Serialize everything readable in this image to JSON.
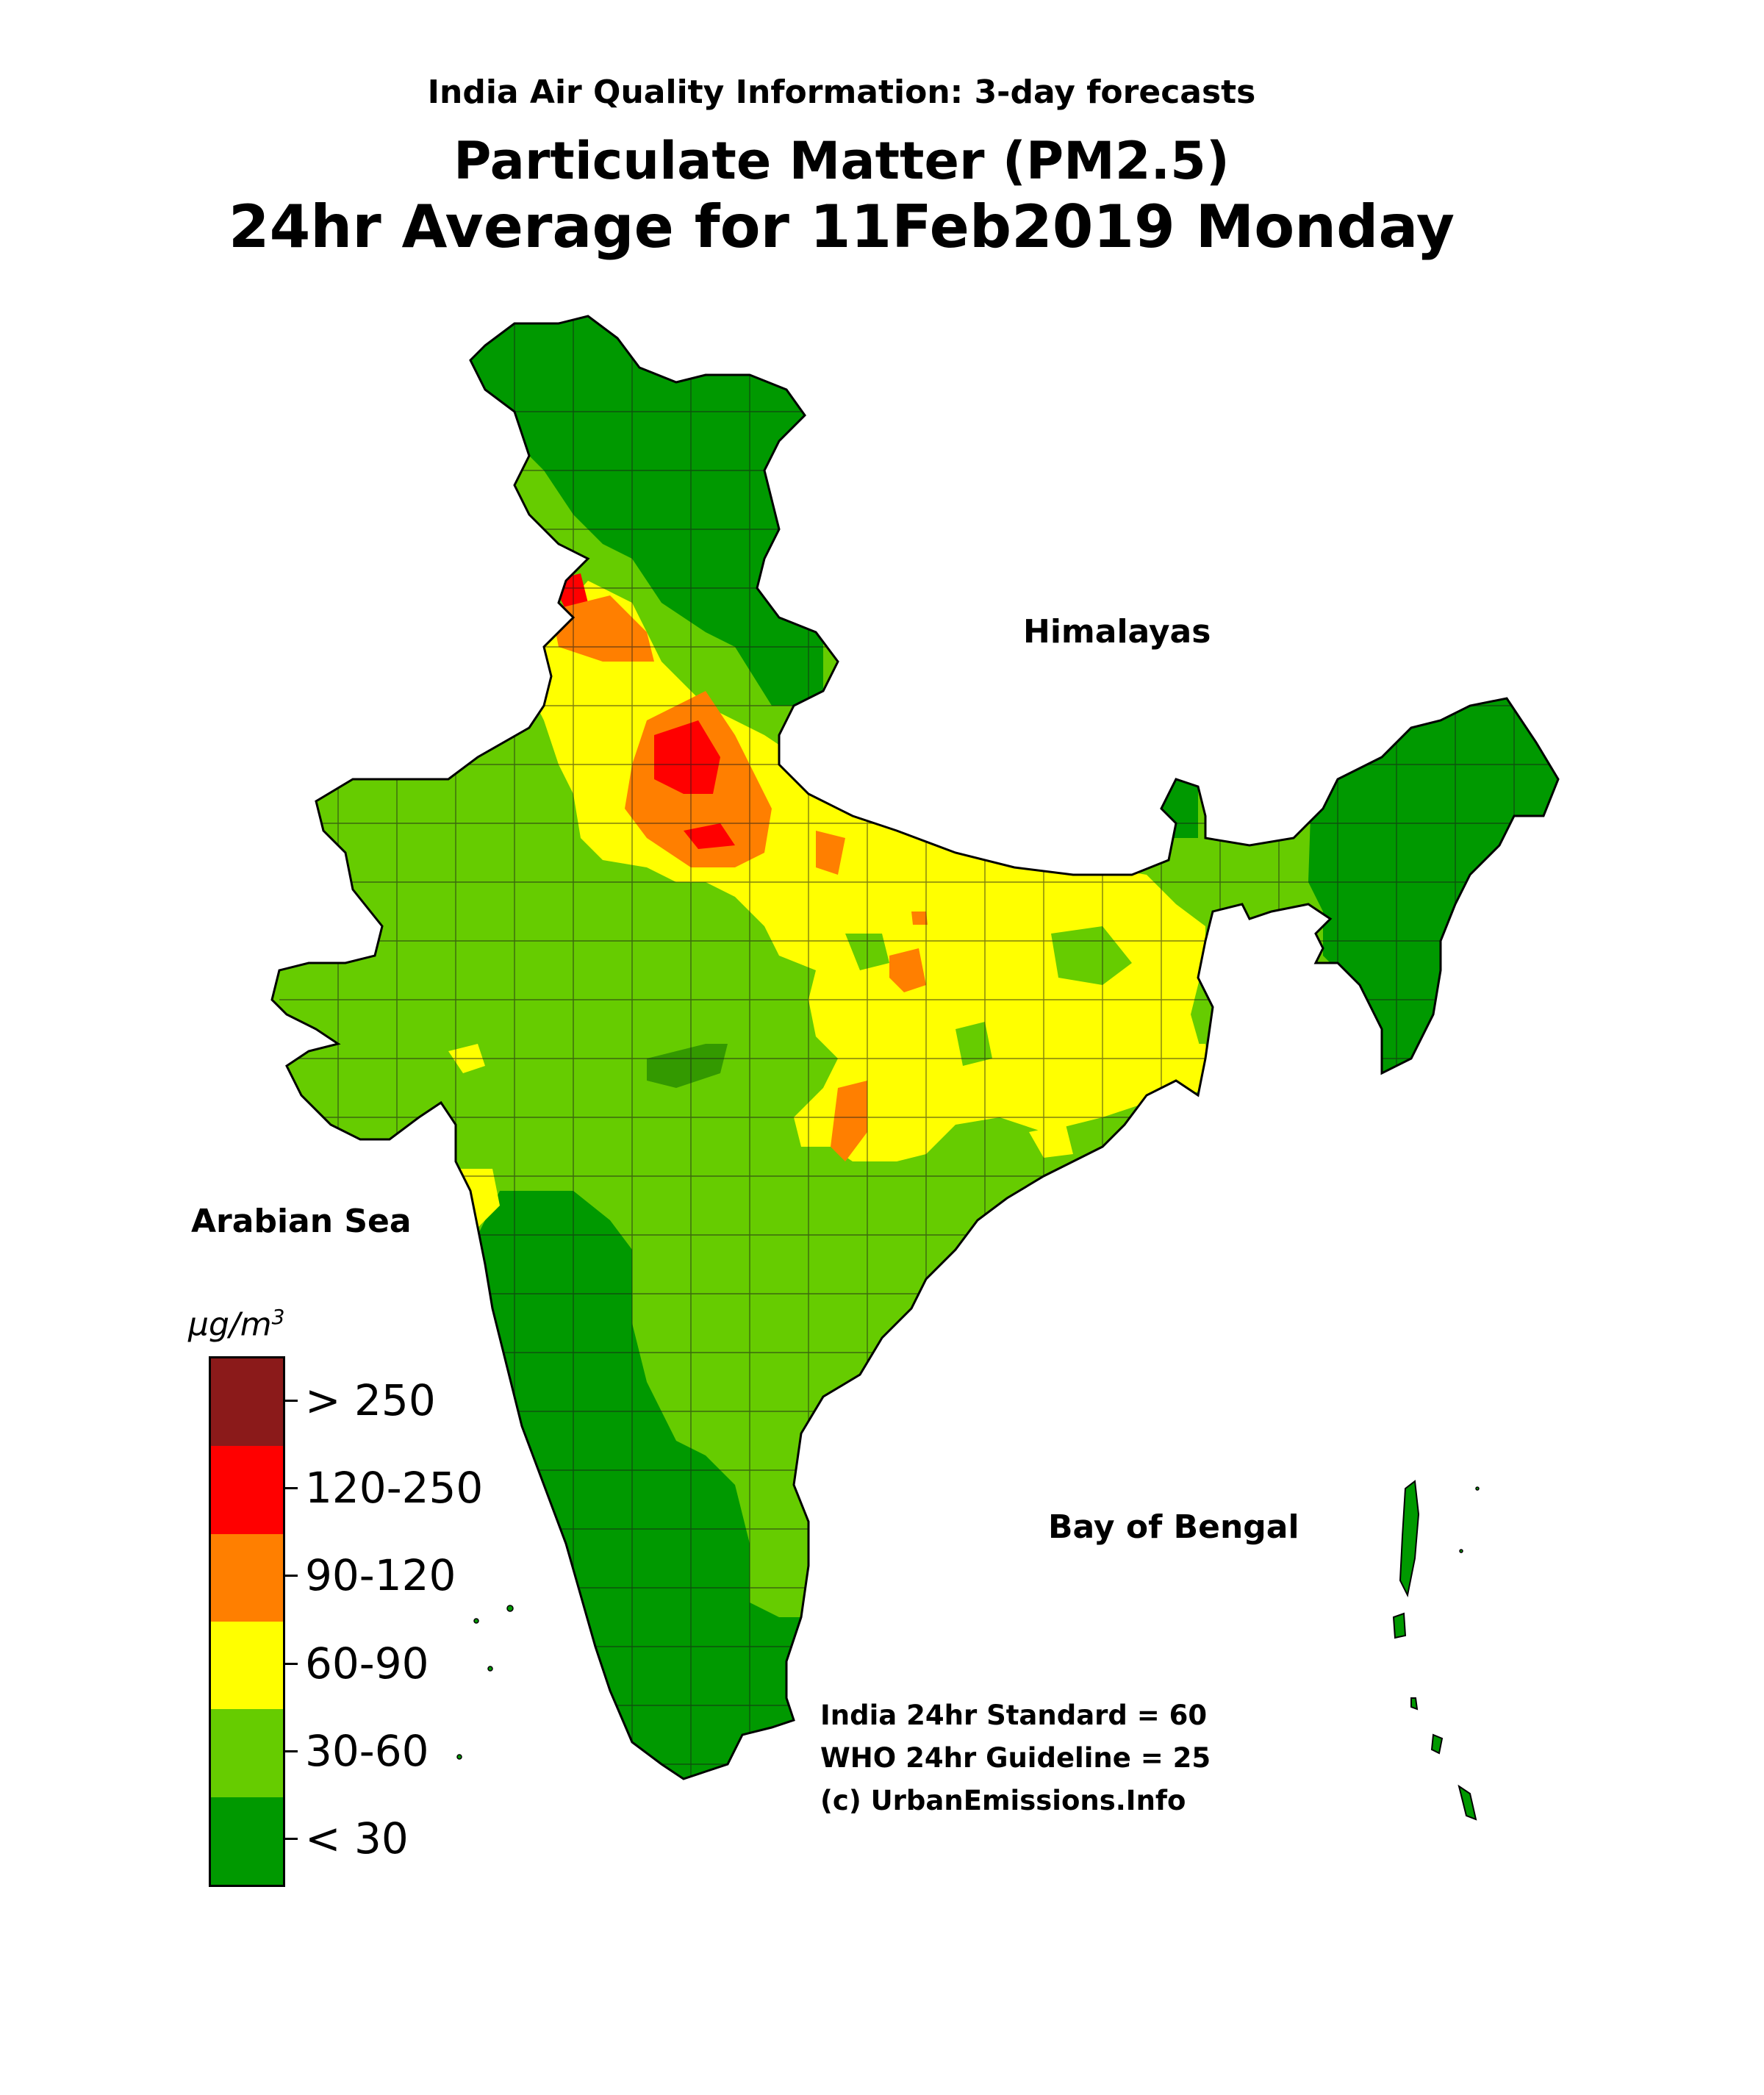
{
  "titles": {
    "line1": "India Air Quality Information: 3-day forecasts",
    "line2": "Particulate Matter (PM2.5)",
    "line3": "24hr Average for 11Feb2019 Monday"
  },
  "map_labels": {
    "himalayas": "Himalayas",
    "arabian_sea": "Arabian Sea",
    "bay_of_bengal": "Bay of Bengal"
  },
  "notes": {
    "standard": "India 24hr Standard = 60",
    "guideline": "WHO 24hr Guideline = 25",
    "credit": "(c) UrbanEmissions.Info"
  },
  "legend": {
    "unit": "μg/m",
    "unit_exponent": "3",
    "bins": [
      {
        "label": "> 250",
        "color": "#8b1a1a"
      },
      {
        "label": "120-250",
        "color": "#ff0000"
      },
      {
        "label": "90-120",
        "color": "#ff7f00"
      },
      {
        "label": "60-90",
        "color": "#ffff00"
      },
      {
        "label": "30-60",
        "color": "#66cc00"
      },
      {
        "label": "< 30",
        "color": "#009900"
      }
    ]
  }
}
